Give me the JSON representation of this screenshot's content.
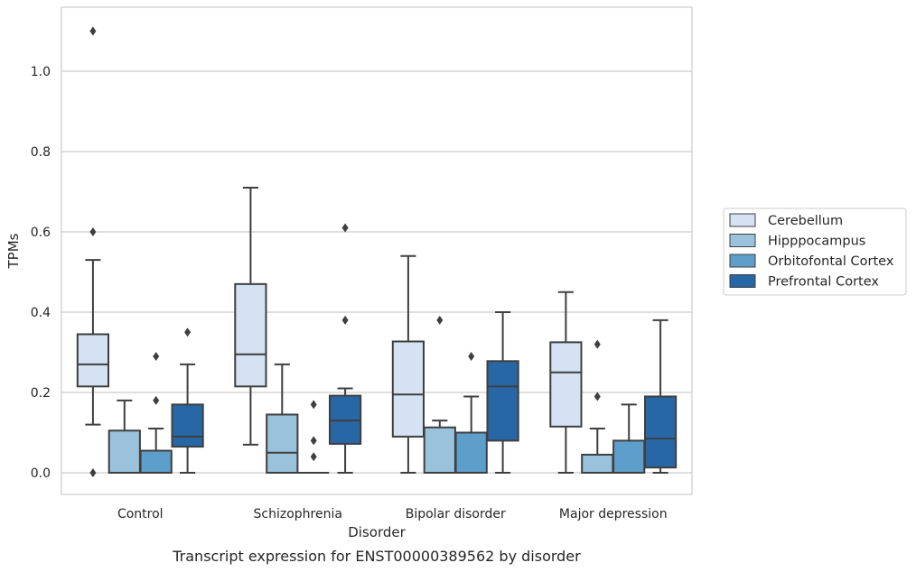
{
  "caption": "Transcript expression for ENST00000389562 by disorder",
  "chart_data": {
    "type": "box",
    "title": "",
    "xlabel": "Disorder",
    "ylabel": "TPMs",
    "ylim": [
      -0.053,
      1.16
    ],
    "yticks": [
      "0.0",
      "0.2",
      "0.4",
      "0.6",
      "0.8",
      "1.0"
    ],
    "grid": "horizontal",
    "legend_position": "right",
    "categories": [
      "Control",
      "Schizophrenia",
      "Bipolar disorder",
      "Major depression"
    ],
    "series": [
      {
        "name": "Cerebellum",
        "color": "#d4e2f3",
        "boxes": [
          {
            "low": 0.12,
            "q1": 0.215,
            "median": 0.27,
            "q3": 0.345,
            "high": 0.53,
            "outliers": [
              1.1,
              0.6,
              0.0
            ]
          },
          {
            "low": 0.07,
            "q1": 0.215,
            "median": 0.295,
            "q3": 0.47,
            "high": 0.71,
            "outliers": []
          },
          {
            "low": 0.0,
            "q1": 0.09,
            "median": 0.195,
            "q3": 0.327,
            "high": 0.54,
            "outliers": []
          },
          {
            "low": 0.0,
            "q1": 0.115,
            "median": 0.25,
            "q3": 0.325,
            "high": 0.45,
            "outliers": []
          }
        ]
      },
      {
        "name": "Hipppocampus",
        "color": "#9ac2dc",
        "boxes": [
          {
            "low": 0.0,
            "q1": 0.0,
            "median": 0.0,
            "q3": 0.105,
            "high": 0.18,
            "outliers": []
          },
          {
            "low": 0.0,
            "q1": 0.0,
            "median": 0.05,
            "q3": 0.145,
            "high": 0.27,
            "outliers": []
          },
          {
            "low": 0.0,
            "q1": 0.0,
            "median": 0.0,
            "q3": 0.113,
            "high": 0.13,
            "outliers": [
              0.38
            ]
          },
          {
            "low": 0.0,
            "q1": 0.0,
            "median": 0.0,
            "q3": 0.045,
            "high": 0.11,
            "outliers": [
              0.32,
              0.19
            ]
          }
        ]
      },
      {
        "name": "Orbitofontal Cortex",
        "color": "#5d9ecb",
        "boxes": [
          {
            "low": 0.0,
            "q1": 0.0,
            "median": 0.0,
            "q3": 0.055,
            "high": 0.11,
            "outliers": [
              0.29,
              0.18
            ]
          },
          {
            "low": 0.0,
            "q1": 0.0,
            "median": 0.0,
            "q3": 0.0,
            "high": 0.0,
            "outliers": [
              0.17,
              0.08,
              0.04
            ]
          },
          {
            "low": 0.0,
            "q1": 0.0,
            "median": 0.0,
            "q3": 0.1,
            "high": 0.19,
            "outliers": [
              0.29
            ]
          },
          {
            "low": 0.0,
            "q1": 0.0,
            "median": 0.0,
            "q3": 0.08,
            "high": 0.17,
            "outliers": []
          }
        ]
      },
      {
        "name": "Prefrontal Cortex",
        "color": "#2767a6",
        "boxes": [
          {
            "low": 0.0,
            "q1": 0.065,
            "median": 0.09,
            "q3": 0.17,
            "high": 0.27,
            "outliers": [
              0.35
            ]
          },
          {
            "low": 0.0,
            "q1": 0.072,
            "median": 0.13,
            "q3": 0.192,
            "high": 0.21,
            "outliers": [
              0.61,
              0.38
            ]
          },
          {
            "low": 0.0,
            "q1": 0.08,
            "median": 0.215,
            "q3": 0.278,
            "high": 0.4,
            "outliers": []
          },
          {
            "low": 0.0,
            "q1": 0.013,
            "median": 0.085,
            "q3": 0.19,
            "high": 0.38,
            "outliers": []
          }
        ]
      }
    ]
  }
}
